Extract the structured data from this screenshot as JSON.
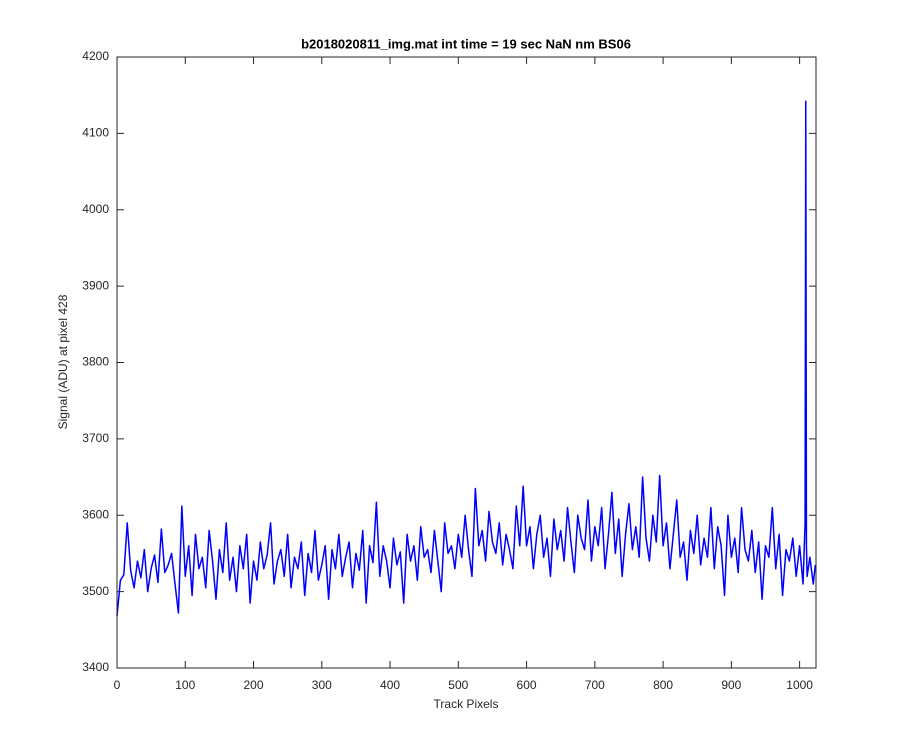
{
  "chart_data": {
    "type": "line",
    "title": "b2018020811_img.mat int time = 19 sec  NaN nm BS06",
    "x_label": "Track Pixels",
    "y_label": "Signal (ADU) at pixel 428",
    "xlim": [
      0,
      1024
    ],
    "xticks": [
      0,
      100,
      200,
      300,
      400,
      500,
      600,
      700,
      800,
      900,
      1000
    ],
    "ylim": [
      3400,
      4200
    ],
    "yticks": [
      3400,
      3500,
      3600,
      3700,
      3800,
      3900,
      4000,
      4100,
      4200
    ],
    "x": [
      0,
      5,
      10,
      15,
      20,
      25,
      30,
      35,
      40,
      45,
      50,
      55,
      60,
      65,
      70,
      75,
      80,
      85,
      90,
      95,
      100,
      105,
      110,
      115,
      120,
      125,
      130,
      135,
      140,
      145,
      150,
      155,
      160,
      165,
      170,
      175,
      180,
      185,
      190,
      195,
      200,
      205,
      210,
      215,
      220,
      225,
      230,
      235,
      240,
      245,
      250,
      255,
      260,
      265,
      270,
      275,
      280,
      285,
      290,
      295,
      300,
      305,
      310,
      315,
      320,
      325,
      330,
      335,
      340,
      345,
      350,
      355,
      360,
      365,
      370,
      375,
      380,
      385,
      390,
      395,
      400,
      405,
      410,
      415,
      420,
      425,
      430,
      435,
      440,
      445,
      450,
      455,
      460,
      465,
      470,
      475,
      480,
      485,
      490,
      495,
      500,
      505,
      510,
      515,
      520,
      525,
      530,
      535,
      540,
      545,
      550,
      555,
      560,
      565,
      570,
      575,
      580,
      585,
      590,
      595,
      600,
      605,
      610,
      615,
      620,
      625,
      630,
      635,
      640,
      645,
      650,
      655,
      660,
      665,
      670,
      675,
      680,
      685,
      690,
      695,
      700,
      705,
      710,
      715,
      720,
      725,
      730,
      735,
      740,
      745,
      750,
      755,
      760,
      765,
      770,
      775,
      780,
      785,
      790,
      795,
      800,
      805,
      810,
      815,
      820,
      825,
      830,
      835,
      840,
      845,
      850,
      855,
      860,
      865,
      870,
      875,
      880,
      885,
      890,
      895,
      900,
      905,
      910,
      915,
      920,
      925,
      930,
      935,
      940,
      945,
      950,
      955,
      960,
      965,
      970,
      975,
      980,
      985,
      990,
      995,
      1000,
      1005,
      1008,
      1009,
      1010,
      1011,
      1015,
      1020,
      1023
    ],
    "series": [
      {
        "color": "#0000ff",
        "values": [
          3468,
          3515,
          3522,
          3590,
          3528,
          3505,
          3540,
          3518,
          3555,
          3500,
          3530,
          3548,
          3512,
          3582,
          3525,
          3535,
          3550,
          3510,
          3472,
          3612,
          3520,
          3560,
          3495,
          3575,
          3530,
          3545,
          3505,
          3580,
          3540,
          3490,
          3555,
          3525,
          3590,
          3515,
          3545,
          3500,
          3560,
          3530,
          3575,
          3485,
          3540,
          3515,
          3565,
          3530,
          3548,
          3590,
          3510,
          3540,
          3555,
          3520,
          3575,
          3505,
          3545,
          3530,
          3565,
          3495,
          3550,
          3525,
          3580,
          3515,
          3535,
          3560,
          3490,
          3555,
          3530,
          3575,
          3520,
          3545,
          3565,
          3505,
          3550,
          3528,
          3580,
          3485,
          3560,
          3538,
          3617,
          3520,
          3560,
          3540,
          3505,
          3570,
          3535,
          3552,
          3485,
          3575,
          3540,
          3560,
          3515,
          3585,
          3545,
          3555,
          3525,
          3580,
          3540,
          3500,
          3590,
          3550,
          3560,
          3530,
          3575,
          3545,
          3600,
          3555,
          3520,
          3635,
          3560,
          3580,
          3540,
          3605,
          3565,
          3550,
          3590,
          3535,
          3575,
          3555,
          3530,
          3612,
          3560,
          3638,
          3560,
          3585,
          3530,
          3575,
          3600,
          3545,
          3570,
          3520,
          3595,
          3555,
          3580,
          3540,
          3610,
          3565,
          3525,
          3600,
          3570,
          3555,
          3620,
          3540,
          3585,
          3560,
          3610,
          3530,
          3575,
          3630,
          3550,
          3595,
          3520,
          3575,
          3615,
          3555,
          3585,
          3545,
          3650,
          3570,
          3540,
          3600,
          3565,
          3652,
          3560,
          3590,
          3530,
          3575,
          3620,
          3545,
          3565,
          3515,
          3580,
          3550,
          3600,
          3535,
          3570,
          3545,
          3610,
          3530,
          3585,
          3560,
          3495,
          3600,
          3545,
          3570,
          3525,
          3610,
          3555,
          3540,
          3580,
          3525,
          3565,
          3490,
          3560,
          3545,
          3610,
          3530,
          3575,
          3495,
          3555,
          3540,
          3570,
          3520,
          3560,
          3510,
          3590,
          4142,
          3560,
          3520,
          3545,
          3510,
          3535
        ]
      }
    ]
  }
}
